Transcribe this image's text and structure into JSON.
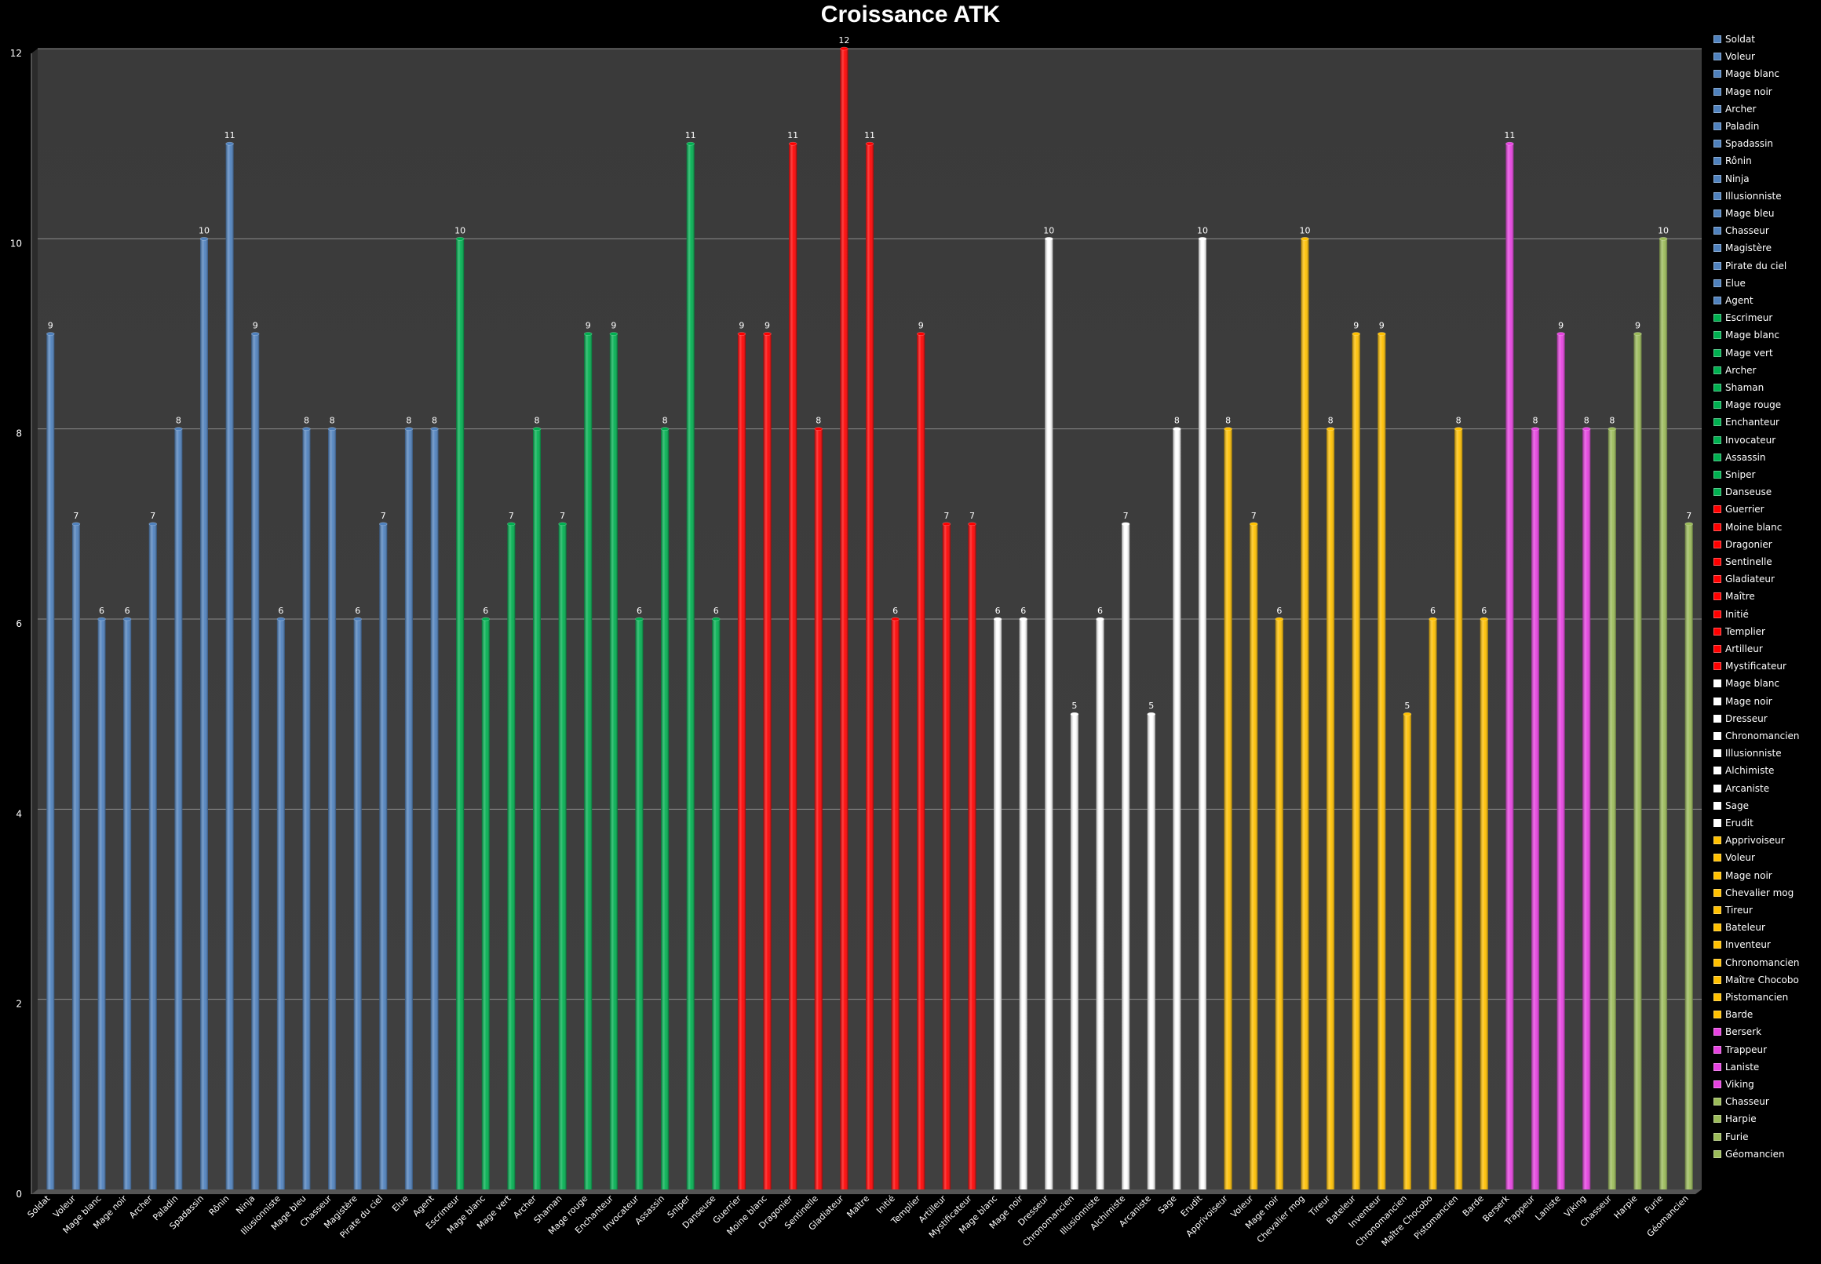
{
  "chart_data": {
    "type": "bar",
    "title": "Croissance ATK",
    "xlabel": "",
    "ylabel": "",
    "ylim": [
      0,
      12
    ],
    "yticks": [
      "0",
      "2",
      "4",
      "6",
      "8",
      "10",
      "12"
    ],
    "grid": true,
    "legend_position": "right",
    "categories": [
      "Soldat",
      "Voleur",
      "Mage blanc",
      "Mage noir",
      "Archer",
      "Paladin",
      "Spadassin",
      "Rônin",
      "Ninja",
      "Illusionniste",
      "Mage bleu",
      "Chasseur",
      "Magistère",
      "Pirate du ciel",
      "Elue",
      "Agent",
      "Escrimeur",
      "Mage blanc",
      "Mage vert",
      "Archer",
      "Shaman",
      "Mage rouge",
      "Enchanteur",
      "Invocateur",
      "Assassin",
      "Sniper",
      "Danseuse",
      "Guerrier",
      "Moine blanc",
      "Dragonier",
      "Sentinelle",
      "Gladiateur",
      "Maître",
      "Initié",
      "Templier",
      "Artilleur",
      "Mystificateur",
      "Mage blanc",
      "Mage noir",
      "Dresseur",
      "Chronomancien",
      "Illusionniste",
      "Alchimiste",
      "Arcaniste",
      "Sage",
      "Erudit",
      "Apprivoiseur",
      "Voleur",
      "Mage noir",
      "Chevalier mog",
      "Tireur",
      "Bateleur",
      "Inventeur",
      "Chronomancien",
      "Maître Chocobo",
      "Pistomancien",
      "Barde",
      "Berserk",
      "Trappeur",
      "Laniste",
      "Viking",
      "Chasseur",
      "Harpie",
      "Furie",
      "Géomancien"
    ],
    "values": [
      9,
      7,
      6,
      6,
      7,
      8,
      10,
      11,
      9,
      6,
      8,
      8,
      6,
      7,
      8,
      8,
      10,
      6,
      7,
      8,
      7,
      9,
      9,
      6,
      8,
      11,
      6,
      9,
      9,
      11,
      8,
      12,
      11,
      6,
      9,
      7,
      7,
      6,
      6,
      10,
      5,
      6,
      7,
      5,
      8,
      10,
      8,
      7,
      6,
      10,
      8,
      9,
      9,
      5,
      6,
      8,
      6,
      11,
      8,
      9,
      8,
      8,
      9,
      10,
      7
    ],
    "data_labels": [
      "9",
      "7",
      "6",
      "6",
      "7",
      "8",
      "10",
      "11",
      "9",
      "6",
      "8",
      "8",
      "6",
      "7",
      "8",
      "8",
      "10",
      "6",
      "7",
      "8",
      "7",
      "9",
      "9",
      "6",
      "8",
      "11",
      "6",
      "9",
      "9",
      "11",
      "8",
      "12",
      "11",
      "6",
      "9",
      "7",
      "7",
      "6",
      "6",
      "10",
      "5",
      "6",
      "7",
      "5",
      "8",
      "10",
      "8",
      "7",
      "6",
      "10",
      "8",
      "9",
      "9",
      "5",
      "6",
      "8",
      "6",
      "11",
      "8",
      "9",
      "8",
      "8",
      "9",
      "10",
      "7"
    ],
    "groups": [
      {
        "color": "#4F81BD",
        "count": 16
      },
      {
        "color": "#00B050",
        "count": 11
      },
      {
        "color": "#FF0000",
        "count": 10
      },
      {
        "color": "#FFFFFF",
        "count": 9
      },
      {
        "color": "#FFC000",
        "count": 11
      },
      {
        "color": "#E642E0",
        "count": 4
      },
      {
        "color": "#9BBB59",
        "count": 4
      }
    ]
  }
}
